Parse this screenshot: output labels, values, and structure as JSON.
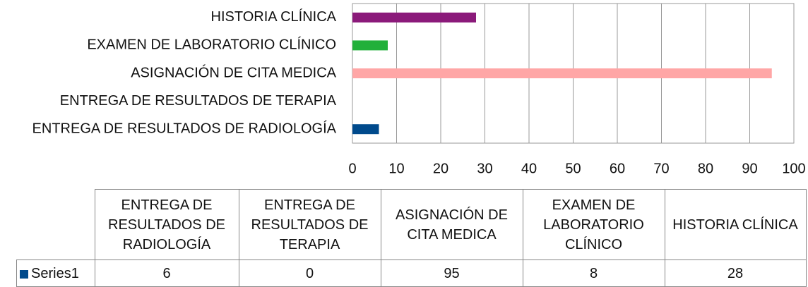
{
  "chart_data": {
    "type": "bar",
    "orientation": "horizontal",
    "categories": [
      "ENTREGA DE RESULTADOS DE RADIOLOGÍA",
      "ENTREGA DE RESULTADOS DE TERAPIA",
      "ASIGNACIÓN DE CITA MEDICA",
      "EXAMEN DE LABORATORIO CLÍNICO",
      "HISTORIA CLÍNICA"
    ],
    "series": [
      {
        "name": "Series1",
        "color": "#004a8c",
        "values": [
          6,
          0,
          95,
          8,
          28
        ],
        "colors": [
          "#004a8c",
          "#004a8c",
          "#ffa6a6",
          "#22b03a",
          "#8b1a7a"
        ]
      }
    ],
    "xlim": [
      0,
      100
    ],
    "xticks": [
      0,
      10,
      20,
      30,
      40,
      50,
      60,
      70,
      80,
      90,
      100
    ],
    "grid": true,
    "data_table": true
  }
}
